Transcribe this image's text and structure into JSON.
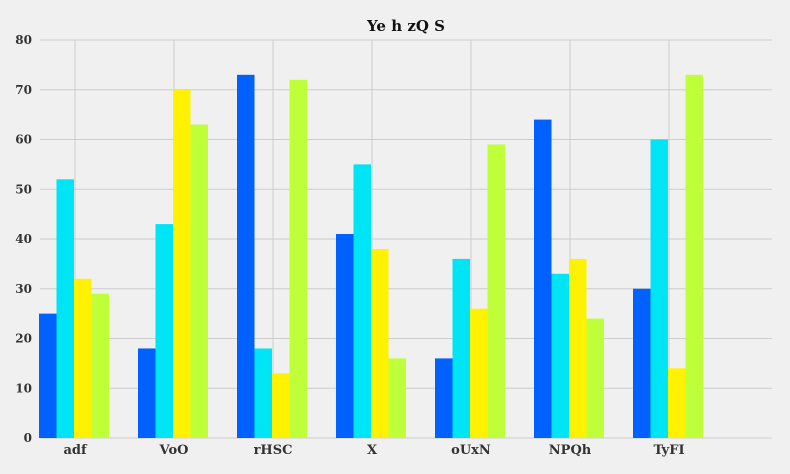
{
  "chart_data": {
    "type": "bar",
    "title": "Ye h zQ S",
    "xlabel": "",
    "ylabel": "",
    "categories": [
      "adf",
      "VoO",
      "rHSC",
      "X",
      "oUxN",
      "NPQh",
      "TyFI"
    ],
    "series": [
      {
        "color": "#0061ff",
        "values": [
          25,
          18,
          73,
          41,
          16,
          64,
          30
        ]
      },
      {
        "color": "#00e5f5",
        "values": [
          52,
          43,
          18,
          55,
          36,
          33,
          60
        ]
      },
      {
        "color": "#fff200",
        "values": [
          32,
          70,
          13,
          38,
          26,
          36,
          14
        ]
      },
      {
        "color": "#bfff3a",
        "values": [
          29,
          63,
          72,
          16,
          59,
          24,
          73
        ]
      }
    ],
    "ylim": [
      0,
      80
    ],
    "yticks": [
      0,
      10,
      20,
      30,
      40,
      50,
      60,
      70,
      80
    ],
    "grid": true,
    "legend": "none"
  },
  "colors": {
    "background": "#f0f0f0",
    "grid": "#cccccc"
  }
}
